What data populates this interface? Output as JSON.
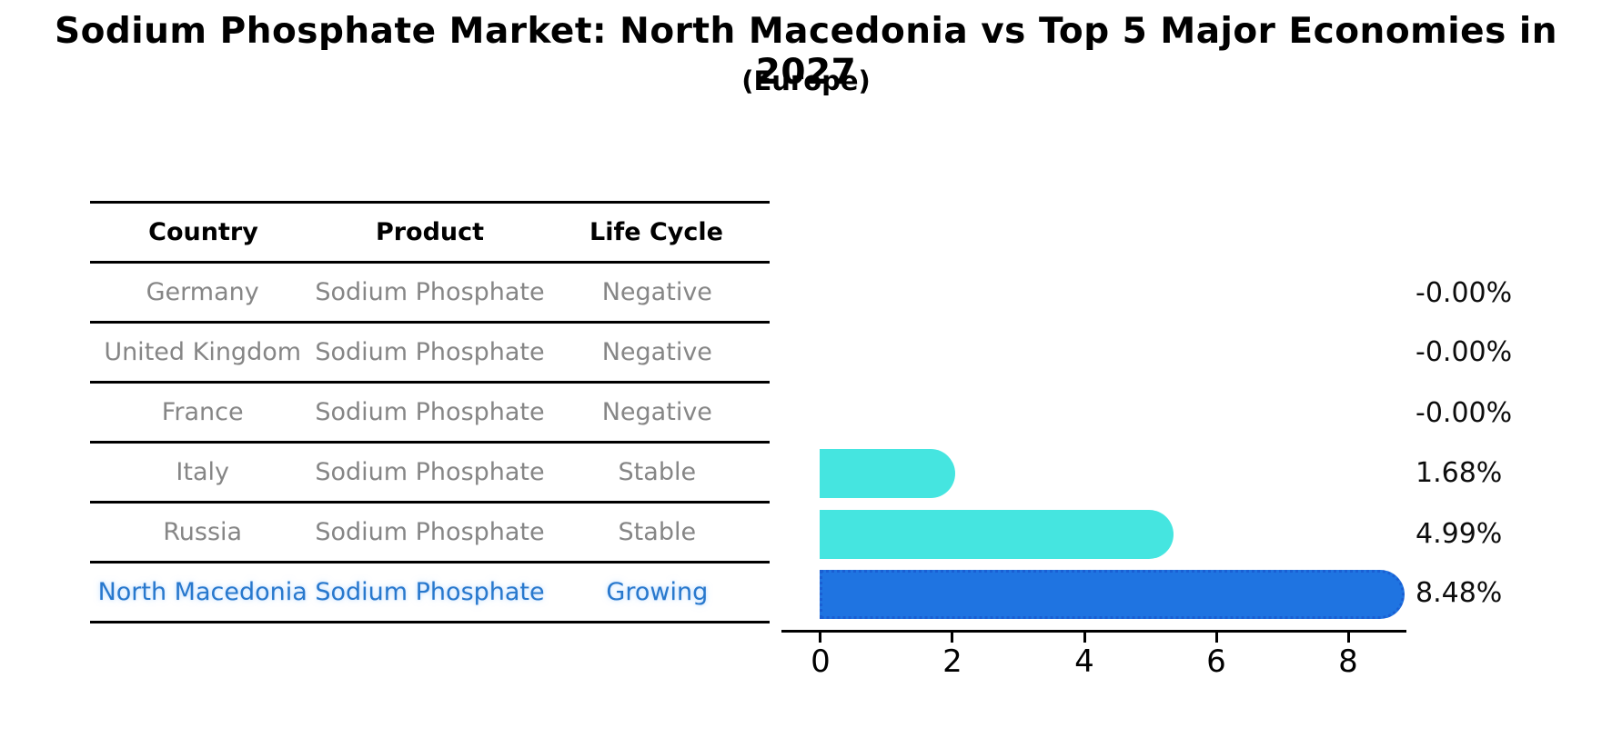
{
  "title": "Sodium Phosphate Market: North Macedonia vs Top 5 Major Economies in 2027",
  "subtitle": "(Europe)",
  "table": {
    "headers": [
      "Country",
      "Product",
      "Life Cycle"
    ],
    "rows": [
      {
        "country": "Germany",
        "product": "Sodium Phosphate",
        "life_cycle": "Negative"
      },
      {
        "country": "United Kingdom",
        "product": "Sodium Phosphate",
        "life_cycle": "Negative"
      },
      {
        "country": "France",
        "product": "Sodium Phosphate",
        "life_cycle": "Negative"
      },
      {
        "country": "Italy",
        "product": "Sodium Phosphate",
        "life_cycle": "Stable"
      },
      {
        "country": "Russia",
        "product": "Sodium Phosphate",
        "life_cycle": "Stable"
      },
      {
        "country": "North Macedonia",
        "product": "Sodium Phosphate",
        "life_cycle": "Growing"
      }
    ]
  },
  "chart_data": {
    "type": "bar",
    "orientation": "horizontal",
    "title": "Sodium Phosphate Market: North Macedonia vs Top 5 Major Economies in 2027",
    "subtitle": "(Europe)",
    "categories": [
      "Germany",
      "United Kingdom",
      "France",
      "Italy",
      "Russia",
      "North Macedonia"
    ],
    "values": [
      0,
      0,
      0,
      1.68,
      4.99,
      8.48
    ],
    "value_labels": [
      "-0.00%",
      "-0.00%",
      "-0.00%",
      "1.68%",
      "4.99%",
      "8.48%"
    ],
    "xticks": [
      0,
      2,
      4,
      6,
      8
    ],
    "xtick_labels": [
      "0",
      "2",
      "4",
      "6",
      "8"
    ],
    "xlim": [
      0,
      8.9
    ],
    "grid": false,
    "legend": "none",
    "highlight_index": 5,
    "colors": {
      "bar_default": "#45e5e0",
      "bar_highlight": "#1f74e1",
      "bar_highlight_border": "#1a5fd3",
      "highlight_text": "#2878cd",
      "cell_text": "#868686",
      "axis": "#000000"
    }
  }
}
